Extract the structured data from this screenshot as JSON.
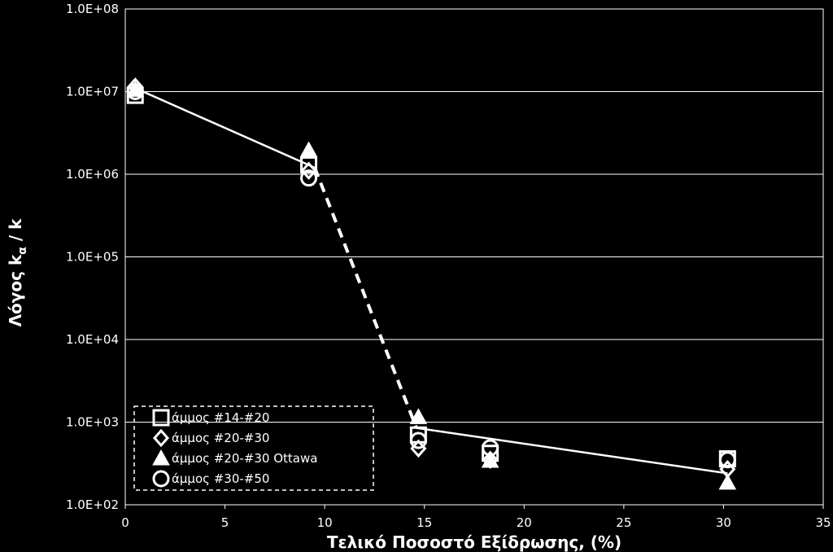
{
  "chart_data": {
    "type": "scatter",
    "ylabel": "Λόγος k",
    "ylabel_subscript": "α",
    "ylabel_suffix": " / k",
    "xlabel": "Τελικό Ποσοστό Εξίδρωσης, (%)",
    "xlim": [
      0,
      35
    ],
    "ylim": [
      100,
      100000000
    ],
    "yscale": "log",
    "x_ticks": [
      "0",
      "5",
      "10",
      "15",
      "20",
      "25",
      "30",
      "35"
    ],
    "y_ticks": [
      "1.0E+02",
      "1.0E+03",
      "1.0E+04",
      "1.0E+05",
      "1.0E+06",
      "1.0E+07",
      "1.0E+08"
    ],
    "grid": "horizontal",
    "legend_position": "bottom-left",
    "series": [
      {
        "name": "άμμος #14-#20",
        "marker": "square",
        "points": [
          [
            0.5,
            9000000
          ],
          [
            9.2,
            1300000
          ],
          [
            14.7,
            700
          ],
          [
            18.3,
            420
          ],
          [
            30.2,
            360
          ]
        ]
      },
      {
        "name": "άμμος #20-#30",
        "marker": "diamond",
        "points": [
          [
            0.5,
            11500000
          ],
          [
            9.2,
            1100000
          ],
          [
            14.7,
            480
          ],
          [
            18.3,
            350
          ],
          [
            30.2,
            270
          ]
        ]
      },
      {
        "name": "άμμος #20-#30 Ottawa",
        "marker": "triangle",
        "points": [
          [
            0.5,
            10500000
          ],
          [
            9.2,
            1950000
          ],
          [
            14.7,
            1150
          ],
          [
            18.3,
            340
          ],
          [
            30.2,
            185
          ]
        ]
      },
      {
        "name": "άμμος #30-#50",
        "marker": "circle",
        "points": [
          [
            0.5,
            10000000
          ],
          [
            9.2,
            900000
          ],
          [
            14.7,
            600
          ],
          [
            18.3,
            490
          ],
          [
            30.2,
            350
          ]
        ]
      }
    ],
    "fit_lines": [
      {
        "style": "solid",
        "points": [
          [
            0.5,
            11000000
          ],
          [
            9.5,
            1200000
          ]
        ]
      },
      {
        "style": "dashed",
        "points": [
          [
            9.5,
            1200000
          ],
          [
            14.6,
            850
          ]
        ]
      },
      {
        "style": "solid",
        "points": [
          [
            14.6,
            850
          ],
          [
            30.2,
            240
          ]
        ]
      }
    ]
  }
}
